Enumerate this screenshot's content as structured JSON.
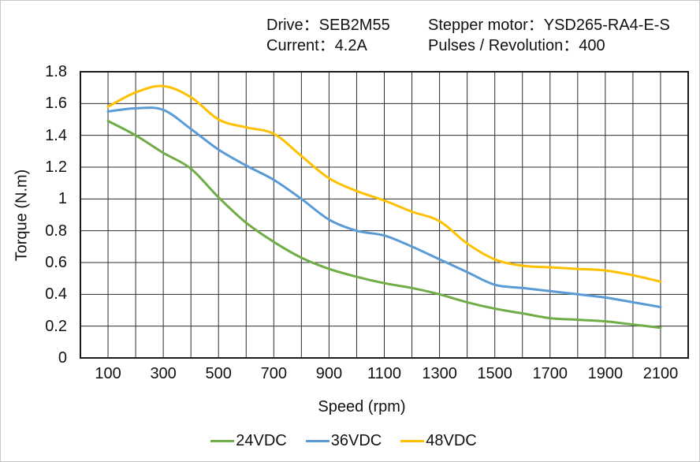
{
  "header": {
    "drive": "Drive：SEB2M55",
    "stepper_motor": "Stepper motor：YSD265-RA4-E-S",
    "current": "Current：4.2A",
    "pulses_per_revolution": "Pulses / Revolution：400"
  },
  "chart_data": {
    "type": "line",
    "title": "",
    "xlabel": "Speed (rpm)",
    "ylabel": "Torque (N.m)",
    "xlim": [
      0,
      2200
    ],
    "ylim": [
      0,
      1.8
    ],
    "grid": true,
    "x_grid_step": 100,
    "y_grid_step": 0.2,
    "xticks": [
      100,
      300,
      500,
      700,
      900,
      1100,
      1300,
      1500,
      1700,
      1900,
      2100
    ],
    "yticks": [
      0,
      0.2,
      0.4,
      0.6,
      0.8,
      1,
      1.2,
      1.4,
      1.6,
      1.8
    ],
    "grid_color": "#2e2e2e",
    "axis_border_color": "#1a1a1a",
    "smooth_lines": true,
    "legend_position": "bottom",
    "x": [
      100,
      200,
      300,
      400,
      500,
      600,
      700,
      800,
      900,
      1000,
      1100,
      1200,
      1300,
      1400,
      1500,
      1600,
      1700,
      1800,
      1900,
      2000,
      2100
    ],
    "series": [
      {
        "name": "24VDC",
        "color": "#70AD47",
        "values": [
          1.49,
          1.4,
          1.29,
          1.19,
          1.01,
          0.85,
          0.73,
          0.63,
          0.56,
          0.51,
          0.47,
          0.44,
          0.4,
          0.35,
          0.31,
          0.28,
          0.25,
          0.24,
          0.23,
          0.21,
          0.19
        ]
      },
      {
        "name": "36VDC",
        "color": "#5B9BD5",
        "values": [
          1.55,
          1.57,
          1.56,
          1.44,
          1.31,
          1.21,
          1.12,
          1.0,
          0.87,
          0.8,
          0.77,
          0.7,
          0.62,
          0.54,
          0.46,
          0.44,
          0.42,
          0.4,
          0.38,
          0.35,
          0.32
        ]
      },
      {
        "name": "48VDC",
        "color": "#FFC000",
        "values": [
          1.58,
          1.67,
          1.71,
          1.64,
          1.5,
          1.45,
          1.41,
          1.27,
          1.13,
          1.05,
          0.99,
          0.92,
          0.86,
          0.72,
          0.62,
          0.58,
          0.57,
          0.56,
          0.55,
          0.52,
          0.48
        ]
      }
    ]
  }
}
